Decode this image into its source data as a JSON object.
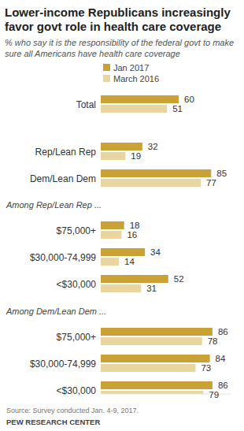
{
  "chart_data": {
    "type": "bar",
    "orientation": "horizontal",
    "title": "Lower-income Republicans increasingly favor govt role in health care coverage",
    "subtitle": "% who say it is the responsibility of the federal govt to make sure all Americans have health care coverage",
    "categories": [
      "Total",
      "Rep/Lean Rep",
      "Dem/Lean Dem",
      "$75,000+",
      "$30,000-74,999",
      "<$30,000",
      "$75,000+",
      "$30,000-74,999",
      "<$30,000"
    ],
    "series": [
      {
        "name": "Jan 2017",
        "color": "#c9a135",
        "values": [
          60,
          32,
          85,
          18,
          34,
          52,
          86,
          84,
          86
        ]
      },
      {
        "name": "March 2016",
        "color": "#e8d59f",
        "values": [
          51,
          19,
          77,
          16,
          14,
          31,
          78,
          73,
          79
        ]
      }
    ],
    "annotations": [
      "Among Rep/Lean Rep ...",
      "Among Dem/Lean Dem ..."
    ],
    "source": "Source: Survey conducted Jan. 4-9, 2017.",
    "credit": "PEW RESEARCH CENTER",
    "xlim": [
      0,
      100
    ],
    "data_labels": true,
    "tick_labels": false
  }
}
